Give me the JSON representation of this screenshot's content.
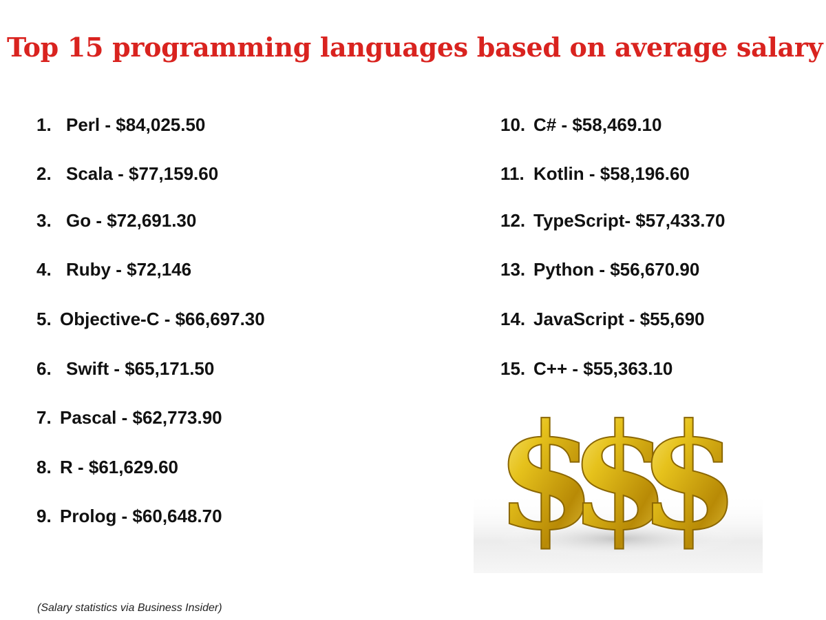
{
  "title": "Top 15 programming languages based on average salary",
  "items": [
    {
      "rank": "1.",
      "text": "Perl - $84,025.50"
    },
    {
      "rank": "2.",
      "text": "Scala - $77,159.60"
    },
    {
      "rank": "3.",
      "text": "Go - $72,691.30"
    },
    {
      "rank": "4.",
      "text": "Ruby - $72,146"
    },
    {
      "rank": "5.",
      "text": "Objective-C - $66,697.30"
    },
    {
      "rank": "6.",
      "text": "Swift - $65,171.50"
    },
    {
      "rank": "7.",
      "text": "Pascal - $62,773.90"
    },
    {
      "rank": "8.",
      "text": "R - $61,629.60"
    },
    {
      "rank": "9.",
      "text": "Prolog - $60,648.70"
    },
    {
      "rank": "10.",
      "text": "C# - $58,469.10"
    },
    {
      "rank": "11.",
      "text": "Kotlin - $58,196.60"
    },
    {
      "rank": "12.",
      "text": "TypeScript- $57,433.70"
    },
    {
      "rank": "13.",
      "text": "Python - $56,670.90"
    },
    {
      "rank": "14.",
      "text": "JavaScript - $55,690"
    },
    {
      "rank": "15.",
      "text": "C++ - $55,363.10"
    }
  ],
  "source": "(Salary statistics via Business Insider)",
  "image": {
    "icon": "gold-dollar-signs-icon",
    "glyph": "$",
    "color": "#d4a90c"
  }
}
